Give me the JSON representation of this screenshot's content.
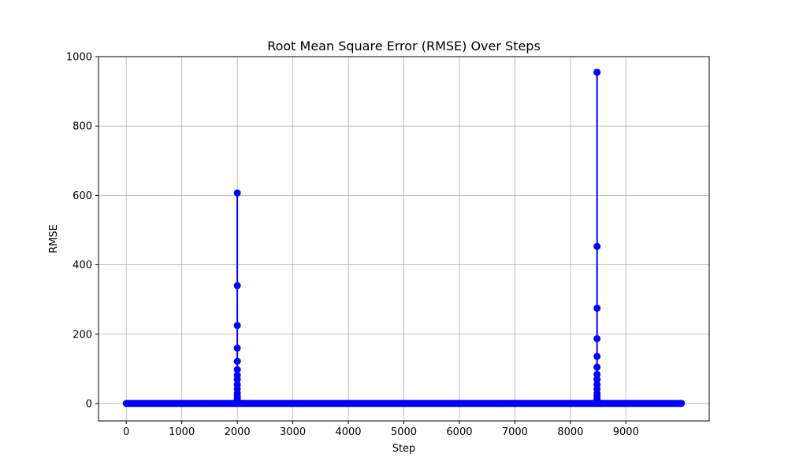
{
  "colors": {
    "series": "#0000ff",
    "grid": "#b0b0b0",
    "axes": "#000000",
    "background": "#ffffff"
  },
  "chart_data": {
    "type": "line",
    "title": "Root Mean Square Error (RMSE) Over Steps",
    "xlabel": "Step",
    "ylabel": "RMSE",
    "xlim": [
      -500,
      10500
    ],
    "ylim": [
      -50,
      1000
    ],
    "xticks": [
      0,
      1000,
      2000,
      3000,
      4000,
      5000,
      6000,
      7000,
      8000,
      9000
    ],
    "yticks": [
      0,
      200,
      400,
      600,
      800,
      1000
    ],
    "grid": true,
    "marker": "circle",
    "series": [
      {
        "color": "#0000ff",
        "baseline": {
          "x_start": 0,
          "x_end": 10000,
          "x_step": 20,
          "y": 0.5
        },
        "spikes": [
          {
            "x": 2000,
            "values": [
              3,
              6,
              10,
              15,
              22,
              30,
              42,
              55,
              70,
              82,
              98,
              122,
              160,
              225,
              340,
              607
            ]
          },
          {
            "x": 8480,
            "values": [
              3,
              6,
              10,
              15,
              22,
              30,
              42,
              55,
              70,
              84,
              105,
              136,
              187,
              275,
              453,
              955
            ]
          }
        ]
      }
    ]
  }
}
